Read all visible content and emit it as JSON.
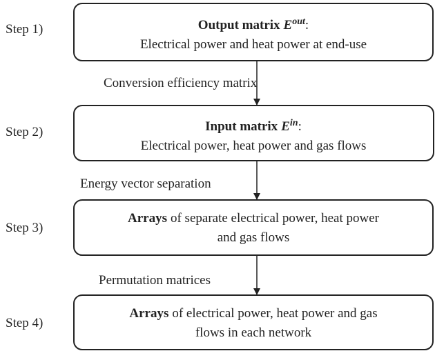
{
  "steps": [
    {
      "label": "Step 1)",
      "heading": {
        "bold": "Output matrix",
        "symbol": "E",
        "superscript": "out",
        "suffix": ":"
      },
      "line": "Electrical power and heat power at end-use"
    },
    {
      "label": "Step 2)",
      "heading": {
        "bold": "Input matrix",
        "symbol": "E",
        "superscript": "in",
        "suffix": ":"
      },
      "line": "Electrical power, heat power and gas flows"
    },
    {
      "label": "Step 3)",
      "bold": "Arrays",
      "line1": "of separate electrical power, heat power",
      "line2": "and gas flows"
    },
    {
      "label": "Step 4)",
      "bold": "Arrays",
      "line1": "of electrical power, heat power and gas",
      "line2": "flows in each network"
    }
  ],
  "arrows": [
    "Conversion efficiency matrix",
    "Energy vector separation",
    "Permutation matrices"
  ]
}
